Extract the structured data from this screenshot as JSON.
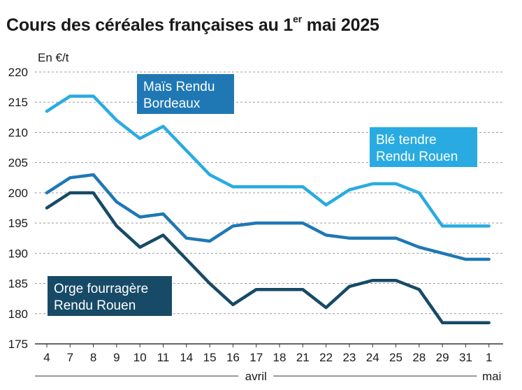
{
  "title": {
    "main": "Cours des céréales françaises au 1",
    "superscript": "er",
    "tail": " mai 2025"
  },
  "chart_data": {
    "type": "line",
    "ylabel": "En €/t",
    "ylim": [
      175,
      220
    ],
    "yticks": [
      175,
      180,
      185,
      190,
      195,
      200,
      205,
      210,
      215,
      220
    ],
    "grid": true,
    "categories": [
      "4",
      "7",
      "8",
      "9",
      "10",
      "11",
      "14",
      "15",
      "16",
      "17",
      "18",
      "21",
      "22",
      "23",
      "24",
      "25",
      "28",
      "29",
      "31",
      "1"
    ],
    "months": [
      {
        "label": "avril",
        "from_index": 0,
        "to_index": 18
      },
      {
        "label": "mai",
        "from_index": 19,
        "to_index": 19
      }
    ],
    "series": [
      {
        "name": "Blé tendre Rendu Rouen",
        "label_lines": [
          "Blé tendre",
          "Rendu Rouen"
        ],
        "color": "#29abe2",
        "values": [
          213.5,
          216,
          216,
          212,
          209,
          211,
          207,
          203,
          201,
          201,
          201,
          201,
          198,
          200.5,
          201.5,
          201.5,
          200,
          194.5,
          194.5,
          194.5
        ]
      },
      {
        "name": "Maïs Rendu Bordeaux",
        "label_lines": [
          "Maïs Rendu",
          "Bordeaux"
        ],
        "color": "#1f78b4",
        "values": [
          200,
          202.5,
          203,
          198.5,
          196,
          196.5,
          192.5,
          192,
          194.5,
          195,
          195,
          195,
          193,
          192.5,
          192.5,
          192.5,
          191,
          190,
          189,
          189
        ]
      },
      {
        "name": "Orge fourragère Rendu Rouen",
        "label_lines": [
          "Orge fourragère",
          "Rendu Rouen"
        ],
        "color": "#174a66",
        "values": [
          197.5,
          200,
          200,
          194.5,
          191,
          193,
          189,
          185,
          181.5,
          184,
          184,
          184,
          181,
          184.5,
          185.5,
          185.5,
          184,
          178.5,
          178.5,
          178.5
        ]
      }
    ]
  }
}
